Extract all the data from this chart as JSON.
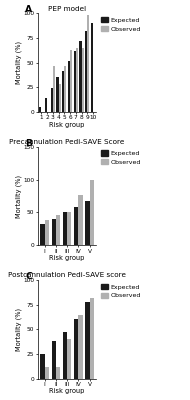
{
  "panel_A": {
    "title": "PEP model",
    "label": "A",
    "x_labels": [
      "1",
      "2",
      "3",
      "4",
      "5",
      "6",
      "7",
      "8",
      "9",
      "10"
    ],
    "expected": [
      5,
      14,
      24,
      35,
      42,
      52,
      62,
      72,
      82,
      90
    ],
    "observed": [
      0,
      0,
      47,
      28,
      47,
      63,
      65,
      65,
      98,
      0
    ],
    "has_observed": [
      false,
      false,
      true,
      true,
      true,
      true,
      true,
      true,
      true,
      false
    ],
    "ylim": [
      0,
      100
    ],
    "yticks": [
      0,
      25,
      50,
      75,
      100
    ],
    "xlabel": "Risk group",
    "ylabel": "Mortality (%)"
  },
  "panel_B": {
    "title": "Precannulation Pedi-SAVE Score",
    "label": "B",
    "x_labels": [
      "I",
      "II",
      "III",
      "IV",
      "V"
    ],
    "expected": [
      32,
      40,
      50,
      58,
      67
    ],
    "observed": [
      38,
      46,
      50,
      76,
      100
    ],
    "ylim": [
      0,
      150
    ],
    "yticks": [
      0,
      50,
      100,
      150
    ],
    "xlabel": "Risk group",
    "ylabel": "Mortality (%)"
  },
  "panel_C": {
    "title": "Postcannulation Pedi-SAVE score",
    "label": "C",
    "x_labels": [
      "I",
      "II",
      "III",
      "IV",
      "V"
    ],
    "expected": [
      25,
      38,
      47,
      60,
      78
    ],
    "observed": [
      12,
      12,
      40,
      65,
      82
    ],
    "ylim": [
      0,
      100
    ],
    "yticks": [
      0,
      25,
      50,
      75,
      100
    ],
    "xlabel": "Risk group",
    "ylabel": "Mortality (%)"
  },
  "bar_colors": {
    "expected": "#1a1a1a",
    "observed": "#b0b0b0"
  },
  "legend": {
    "expected_label": "Expected",
    "observed_label": "Observed"
  },
  "bar_width": 0.38,
  "title_fontsize": 5.2,
  "label_fontsize": 4.8,
  "tick_fontsize": 4.2,
  "legend_fontsize": 4.5
}
